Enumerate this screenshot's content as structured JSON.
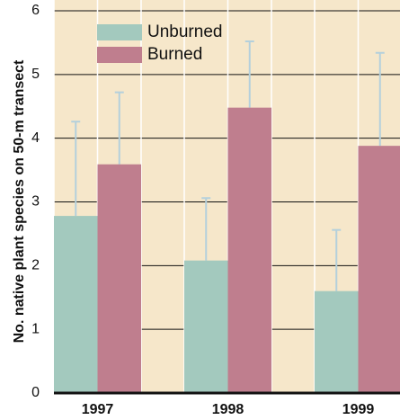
{
  "chart_data": {
    "type": "bar",
    "y_label": "No. native plant species on 50-m transect",
    "categories": [
      "1997",
      "1998",
      "1999"
    ],
    "series": [
      {
        "name": "Unburned",
        "color": "#a3c9be",
        "values": [
          2.78,
          2.08,
          1.6
        ],
        "errors": [
          1.48,
          0.98,
          0.96
        ]
      },
      {
        "name": "Burned",
        "color": "#bf7e8e",
        "values": [
          3.59,
          4.48,
          3.88
        ],
        "errors": [
          1.13,
          1.04,
          1.46
        ]
      }
    ],
    "error_color": "#b4d0dc",
    "ylim": [
      0,
      6
    ],
    "yticks": [
      0,
      1,
      2,
      3,
      4,
      5,
      6
    ],
    "grid": true,
    "legend": "upper left"
  }
}
